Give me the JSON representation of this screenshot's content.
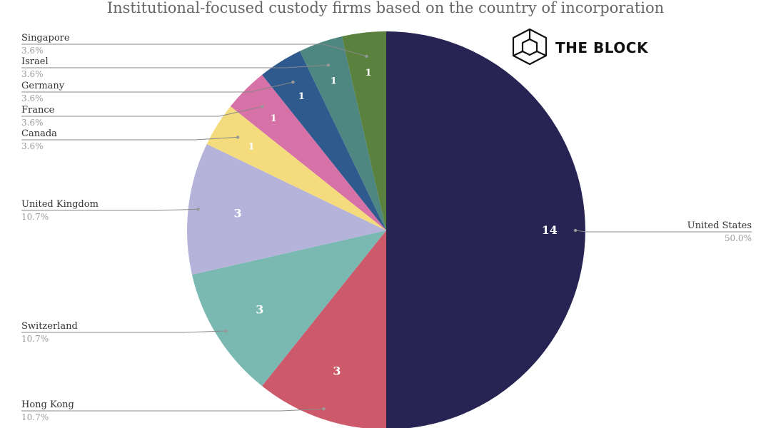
{
  "brand": {
    "name": "THE BLOCK",
    "logo_icon": "cube-logo-icon"
  },
  "chart_data": {
    "type": "pie",
    "title": "Institutional-focused custody firms based on the country of incorporation",
    "start_angle_deg": 0,
    "direction": "clockwise",
    "slices": [
      {
        "label": "United States",
        "value": 14,
        "percent": "50.0%",
        "color": "#272453"
      },
      {
        "label": "Hong Kong",
        "value": 3,
        "percent": "10.7%",
        "color": "#cd5a6a"
      },
      {
        "label": "Switzerland",
        "value": 3,
        "percent": "10.7%",
        "color": "#7ab8b2"
      },
      {
        "label": "United Kingdom",
        "value": 3,
        "percent": "10.7%",
        "color": "#b5b3da"
      },
      {
        "label": "Canada",
        "value": 1,
        "percent": "3.6%",
        "color": "#f4db7e"
      },
      {
        "label": "France",
        "value": 1,
        "percent": "3.6%",
        "color": "#d672a7"
      },
      {
        "label": "Germany",
        "value": 1,
        "percent": "3.6%",
        "color": "#2f5a8e"
      },
      {
        "label": "Israel",
        "value": 1,
        "percent": "3.6%",
        "color": "#4e8781"
      },
      {
        "label": "Singapore",
        "value": 1,
        "percent": "3.6%",
        "color": "#5a823e"
      }
    ]
  }
}
